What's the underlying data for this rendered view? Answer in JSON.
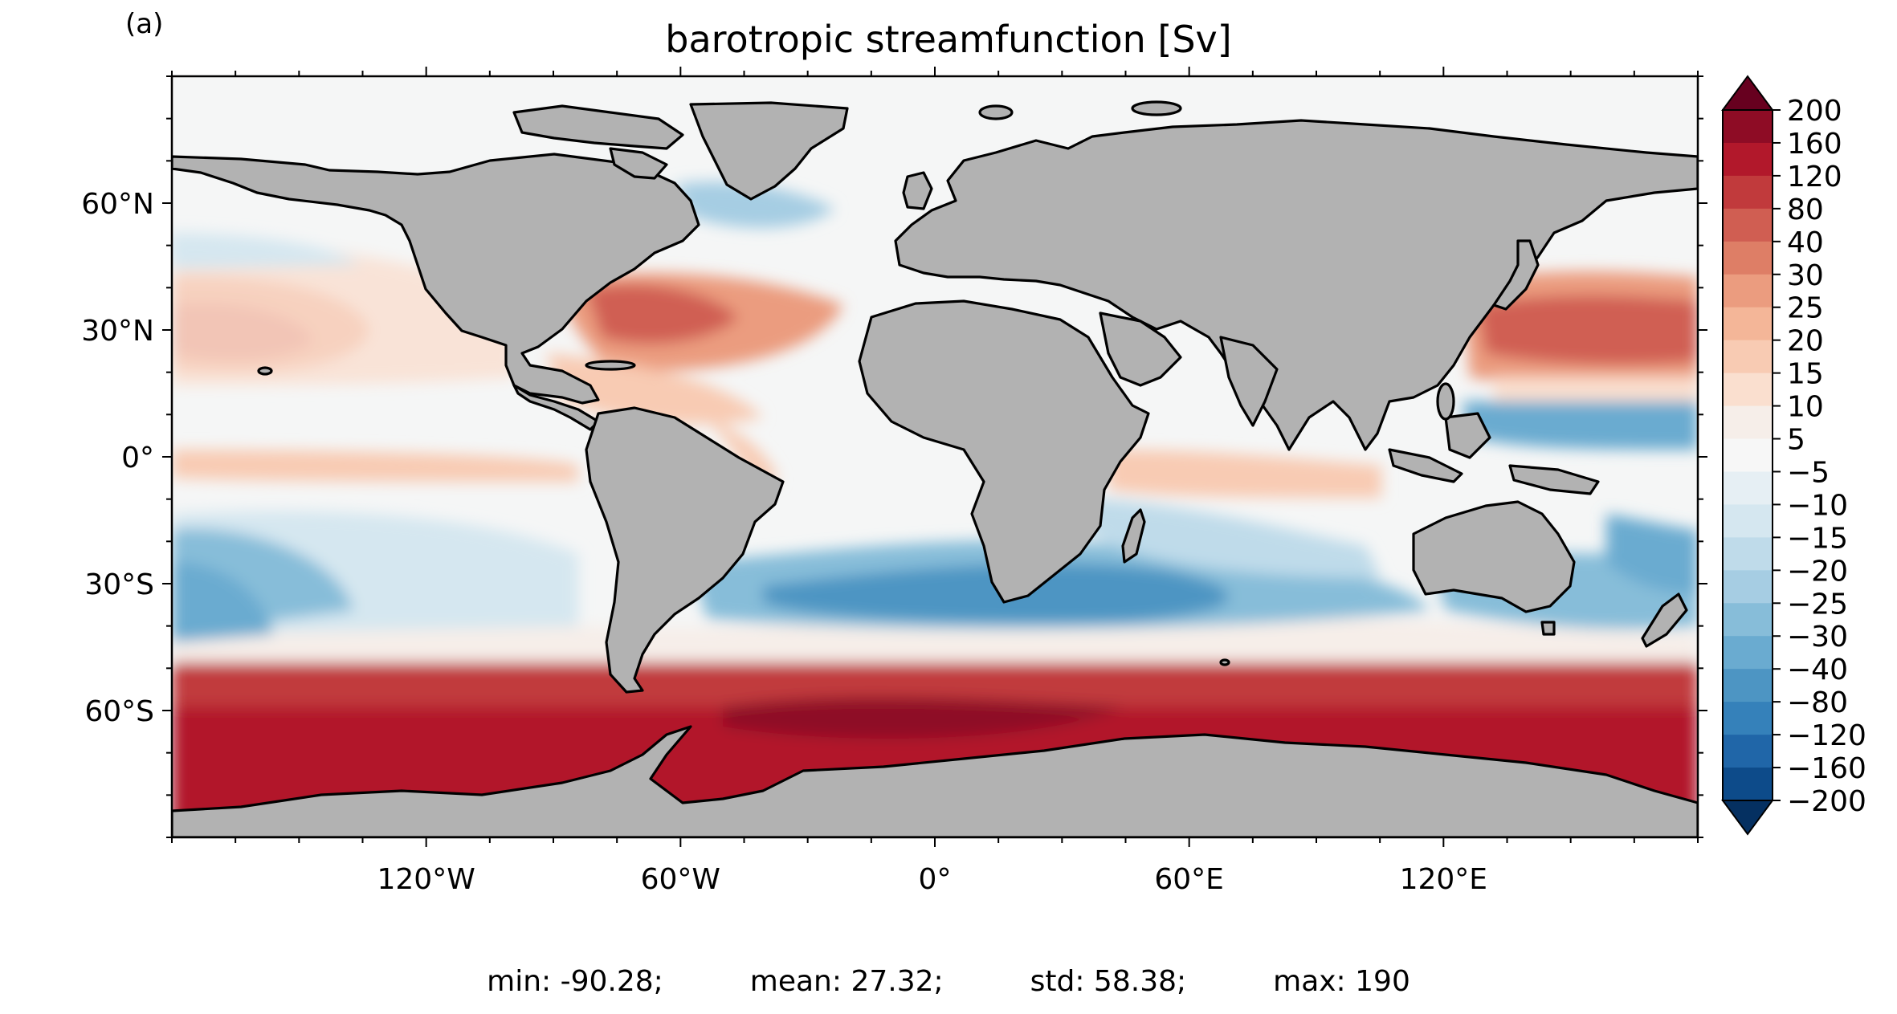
{
  "panel_label": "(a)",
  "title": "barotropic streamfunction [Sv]",
  "axes": {
    "lon_ticks": [
      "120°W",
      "60°W",
      "0°",
      "60°E",
      "120°E"
    ],
    "lat_ticks": [
      "60°N",
      "30°N",
      "0°",
      "30°S",
      "60°S"
    ]
  },
  "colorbar": {
    "levels": [
      "200",
      "160",
      "120",
      "80",
      "40",
      "30",
      "25",
      "20",
      "15",
      "10",
      "5",
      "−5",
      "−10",
      "−15",
      "−20",
      "−25",
      "−30",
      "−40",
      "−80",
      "−120",
      "−160",
      "−200"
    ],
    "colors": [
      "#67001f",
      "#8e0c25",
      "#b2182b",
      "#c13a3c",
      "#d05e52",
      "#de7e66",
      "#eb9c7f",
      "#f4b698",
      "#f8cbb3",
      "#fadfcf",
      "#f6eee9",
      "#f7f7f7",
      "#e6eff4",
      "#d5e7f0",
      "#bfdbea",
      "#a6cde3",
      "#87bdd9",
      "#6aabd0",
      "#4d95c3",
      "#3581ba",
      "#2066a8",
      "#0d4b8a",
      "#053061"
    ],
    "extend": "both"
  },
  "stats": {
    "min": "min: -90.28;",
    "mean": "mean: 27.32;",
    "std": "std: 58.38;",
    "max": "max: 190"
  },
  "land_color": "#b2b2b2"
}
